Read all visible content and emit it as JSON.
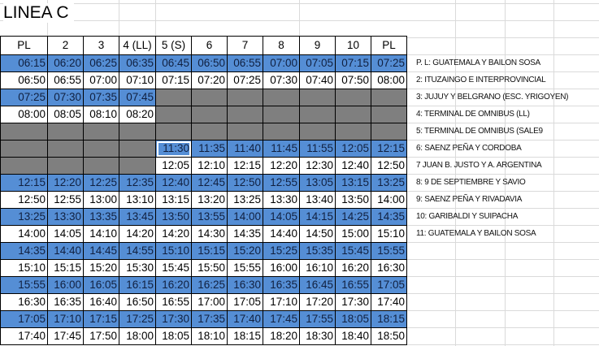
{
  "title": "LINEA C",
  "colors": {
    "blue": "#558ed5",
    "gray": "#7f7f7f",
    "white": "#ffffff"
  },
  "headers": [
    "PL",
    "2",
    "3",
    "4 (LL)",
    "5 (S)",
    "6",
    "7",
    "8",
    "9",
    "10",
    "PL"
  ],
  "rows": [
    {
      "color": "blue",
      "cells": [
        "06:15",
        "06:20",
        "06:25",
        "06:35",
        "06:45",
        "06:50",
        "06:55",
        "07:00",
        "07:05",
        "07:15",
        "07:25"
      ]
    },
    {
      "color": "white",
      "cells": [
        "06:50",
        "06:55",
        "07:00",
        "07:10",
        "07:15",
        "07:20",
        "07:25",
        "07:30",
        "07:40",
        "07:50",
        "08:00"
      ]
    },
    {
      "color": "blue",
      "cells": [
        "07:25",
        "07:30",
        "07:35",
        "07:45",
        null,
        null,
        null,
        null,
        null,
        null,
        null
      ]
    },
    {
      "color": "white",
      "cells": [
        "08:00",
        "08:05",
        "08:10",
        "08:20",
        null,
        null,
        null,
        null,
        null,
        null,
        null
      ]
    },
    {
      "color": "gray",
      "cells": [
        null,
        null,
        null,
        null,
        null,
        null,
        null,
        null,
        null,
        null,
        null
      ]
    },
    {
      "color": "blue",
      "cells": [
        null,
        null,
        null,
        null,
        "11:30",
        "11:35",
        "11:40",
        "11:45",
        "11:55",
        "12:05",
        "12:15"
      ],
      "selected_col": 4
    },
    {
      "color": "white",
      "cells": [
        null,
        null,
        null,
        null,
        "12:05",
        "12:10",
        "12:15",
        "12:20",
        "12:30",
        "12:40",
        "12:50"
      ]
    },
    {
      "color": "blue",
      "cells": [
        "12:15",
        "12:20",
        "12:25",
        "12:35",
        "12:40",
        "12:45",
        "12:50",
        "12:55",
        "13:05",
        "13:15",
        "13:25"
      ]
    },
    {
      "color": "white",
      "cells": [
        "12:50",
        "12:55",
        "13:00",
        "13:10",
        "13:15",
        "13:20",
        "13:25",
        "13:30",
        "13:40",
        "13:50",
        "14:00"
      ]
    },
    {
      "color": "blue",
      "cells": [
        "13:25",
        "13:30",
        "13:35",
        "13:45",
        "13:50",
        "13:55",
        "14:00",
        "14:05",
        "14:15",
        "14:25",
        "14:35"
      ]
    },
    {
      "color": "white",
      "cells": [
        "14:00",
        "14:05",
        "14:10",
        "14:20",
        "14:20",
        "14:30",
        "14:35",
        "14:40",
        "14:50",
        "15:00",
        "15:10"
      ]
    },
    {
      "color": "blue",
      "cells": [
        "14:35",
        "14:40",
        "14:45",
        "14:55",
        "15:10",
        "15:15",
        "15:20",
        "15:25",
        "15:35",
        "15:45",
        "15:55"
      ]
    },
    {
      "color": "white",
      "cells": [
        "15:10",
        "15:15",
        "15:20",
        "15:30",
        "15:45",
        "15:50",
        "15:55",
        "16:00",
        "16:10",
        "16:20",
        "16:30"
      ]
    },
    {
      "color": "blue",
      "cells": [
        "15:55",
        "16:00",
        "16:05",
        "16:15",
        "16:20",
        "16:25",
        "16:30",
        "16:35",
        "16:45",
        "16:55",
        "17:05"
      ]
    },
    {
      "color": "white",
      "cells": [
        "16:30",
        "16:35",
        "16:40",
        "16:50",
        "16:55",
        "17:00",
        "17:05",
        "17:10",
        "17:20",
        "17:30",
        "17:40"
      ]
    },
    {
      "color": "blue",
      "cells": [
        "17:05",
        "17:10",
        "17:15",
        "17:25",
        "17:30",
        "17:35",
        "17:40",
        "17:45",
        "17:55",
        "18:05",
        "18:15"
      ]
    },
    {
      "color": "white",
      "cells": [
        "17:40",
        "17:45",
        "17:50",
        "18:00",
        "18:05",
        "18:10",
        "18:15",
        "18:20",
        "18:30",
        "18:40",
        "18:50"
      ]
    }
  ],
  "legend": [
    "P. L: GUATEMALA Y BAILON SOSA",
    "2: ITUZAINGO E INTERPROVINCIAL",
    "3: JUJUY Y BELGRANO (ESC. YRIGOYEN)",
    "4: TERMINAL DE OMNIBUS (LL)",
    "5: TERMINAL DE OMNIBUS (SALE9",
    "6: SAENZ PEÑA Y CORDOBA",
    "7 JUAN B. JUSTO Y A. ARGENTINA",
    "8: 9 DE SEPTIEMBRE Y SAVIO",
    "9: SAENZ PEÑA Y RIVADAVIA",
    "10: GARIBALDI Y SUIPACHA",
    "11: GUATEMALA Y BAILON SOSA"
  ]
}
